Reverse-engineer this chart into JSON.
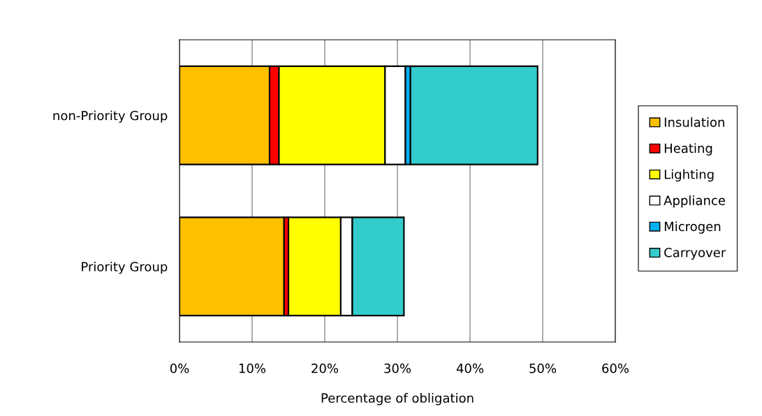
{
  "chart_data": {
    "type": "bar",
    "orientation": "horizontal",
    "stacked": true,
    "xlabel": "Percentage of obligation",
    "categories": [
      "non-Priority Group",
      "Priority Group"
    ],
    "series": [
      {
        "name": "Insulation",
        "color": "#ffc000",
        "values": [
          12.4,
          14.4
        ]
      },
      {
        "name": "Heating",
        "color": "#ff0000",
        "values": [
          1.3,
          0.6
        ]
      },
      {
        "name": "Lighting",
        "color": "#ffff00",
        "values": [
          14.6,
          7.2
        ]
      },
      {
        "name": "Appliance",
        "color": "#ffffff",
        "values": [
          2.8,
          1.6
        ]
      },
      {
        "name": "Microgen",
        "color": "#00b0f0",
        "values": [
          0.7,
          0
        ]
      },
      {
        "name": "Carryover",
        "color": "#33cccc",
        "values": [
          17.5,
          7.1
        ]
      }
    ],
    "xlim": [
      0,
      60
    ],
    "xticks": [
      {
        "value": 0,
        "label": "0%"
      },
      {
        "value": 10,
        "label": "10%"
      },
      {
        "value": 20,
        "label": "20%"
      },
      {
        "value": 30,
        "label": "30%"
      },
      {
        "value": 40,
        "label": "40%"
      },
      {
        "value": 50,
        "label": "50%"
      },
      {
        "value": 60,
        "label": "60%"
      }
    ],
    "grid": "x",
    "legend": "right"
  }
}
